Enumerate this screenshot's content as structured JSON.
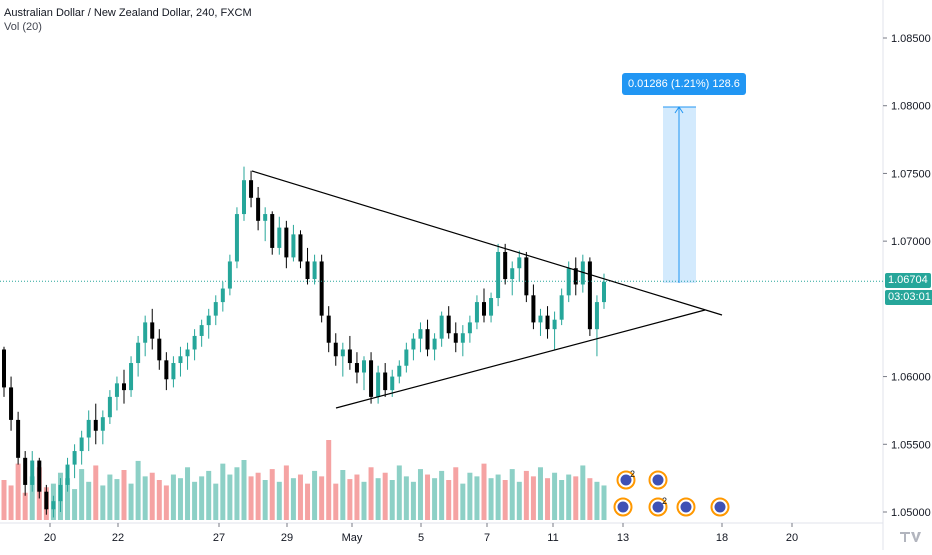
{
  "legend": {
    "title": "Australian Dollar / New Zealand Dollar, 240, FXCM",
    "volume": "Vol (20)"
  },
  "price_axis": {
    "ticks": [
      "1.08500",
      "1.08000",
      "1.07500",
      "1.07000",
      "1.06000",
      "1.05500",
      "1.05000"
    ],
    "current_price": "1.06704",
    "countdown": "03:03:01"
  },
  "time_axis": {
    "ticks": [
      "20",
      "22",
      "27",
      "29",
      "May",
      "5",
      "7",
      "11",
      "13",
      "18",
      "20"
    ]
  },
  "measure_callout": "0.01286 (1.21%) 128.6",
  "event_counts": [
    "2",
    "2"
  ],
  "colors": {
    "up": "#26a69a",
    "down": "#000000",
    "vol_up": "#8dd0c6",
    "vol_down": "#f5a3a3",
    "price_line": "#26a69a",
    "measure": "#2196f3"
  },
  "chart_data": {
    "type": "candlestick",
    "symbol": "Australian Dollar / New Zealand Dollar",
    "interval": "240",
    "source": "FXCM",
    "ylim": [
      1.0495,
      1.0885
    ],
    "current_price": 1.06704,
    "candles": [
      [
        1.062,
        1.0622,
        1.0585,
        1.0592
      ],
      [
        1.0592,
        1.06,
        1.056,
        1.0568
      ],
      [
        1.0568,
        1.0574,
        1.0535,
        1.054
      ],
      [
        1.054,
        1.0545,
        1.0512,
        1.052
      ],
      [
        1.052,
        1.0545,
        1.0515,
        1.0538
      ],
      [
        1.0538,
        1.054,
        1.051,
        1.0515
      ],
      [
        1.0515,
        1.052,
        1.0498,
        1.0502
      ],
      [
        1.0502,
        1.0512,
        1.0496,
        1.0508
      ],
      [
        1.0508,
        1.0525,
        1.05,
        1.052
      ],
      [
        1.052,
        1.054,
        1.0515,
        1.0535
      ],
      [
        1.0535,
        1.055,
        1.0525,
        1.0545
      ],
      [
        1.0545,
        1.056,
        1.0535,
        1.0555
      ],
      [
        1.0555,
        1.0575,
        1.0545,
        1.0568
      ],
      [
        1.0568,
        1.058,
        1.055,
        1.056
      ],
      [
        1.056,
        1.0575,
        1.055,
        1.057
      ],
      [
        1.057,
        1.059,
        1.0565,
        1.0585
      ],
      [
        1.0585,
        1.06,
        1.0575,
        1.0595
      ],
      [
        1.0595,
        1.0605,
        1.058,
        1.059
      ],
      [
        1.059,
        1.0615,
        1.0585,
        1.061
      ],
      [
        1.061,
        1.063,
        1.06,
        1.0625
      ],
      [
        1.0625,
        1.0645,
        1.0615,
        1.064
      ],
      [
        1.064,
        1.065,
        1.062,
        1.0628
      ],
      [
        1.0628,
        1.0635,
        1.0605,
        1.0612
      ],
      [
        1.0612,
        1.0618,
        1.059,
        1.0598
      ],
      [
        1.0598,
        1.0615,
        1.0592,
        1.061
      ],
      [
        1.061,
        1.0622,
        1.06,
        1.0615
      ],
      [
        1.0615,
        1.0625,
        1.0605,
        1.062
      ],
      [
        1.062,
        1.0635,
        1.0612,
        1.063
      ],
      [
        1.063,
        1.0642,
        1.0622,
        1.0638
      ],
      [
        1.0638,
        1.065,
        1.0628,
        1.0645
      ],
      [
        1.0645,
        1.066,
        1.0638,
        1.0655
      ],
      [
        1.0655,
        1.067,
        1.0648,
        1.0665
      ],
      [
        1.0665,
        1.069,
        1.066,
        1.0685
      ],
      [
        1.0685,
        1.0725,
        1.068,
        1.072
      ],
      [
        1.072,
        1.0755,
        1.0715,
        1.0745
      ],
      [
        1.0745,
        1.0752,
        1.0725,
        1.0732
      ],
      [
        1.0732,
        1.074,
        1.0708,
        1.0715
      ],
      [
        1.0715,
        1.0725,
        1.07,
        1.072
      ],
      [
        1.072,
        1.0722,
        1.069,
        1.0695
      ],
      [
        1.0695,
        1.0718,
        1.069,
        1.071
      ],
      [
        1.071,
        1.0715,
        1.068,
        1.0688
      ],
      [
        1.0688,
        1.0712,
        1.0685,
        1.0705
      ],
      [
        1.0705,
        1.0708,
        1.068,
        1.0685
      ],
      [
        1.0685,
        1.0695,
        1.0668,
        1.0672
      ],
      [
        1.0672,
        1.069,
        1.0668,
        1.0685
      ],
      [
        1.0685,
        1.069,
        1.064,
        1.0645
      ],
      [
        1.0645,
        1.0652,
        1.0618,
        1.0625
      ],
      [
        1.0625,
        1.0632,
        1.0608,
        1.0615
      ],
      [
        1.0615,
        1.0625,
        1.06,
        1.062
      ],
      [
        1.062,
        1.063,
        1.0605,
        1.061
      ],
      [
        1.061,
        1.0618,
        1.0595,
        1.0603
      ],
      [
        1.0603,
        1.0615,
        1.059,
        1.0612
      ],
      [
        1.0612,
        1.0618,
        1.058,
        1.0585
      ],
      [
        1.0585,
        1.0608,
        1.058,
        1.0603
      ],
      [
        1.0603,
        1.061,
        1.0585,
        1.059
      ],
      [
        1.059,
        1.0605,
        1.0585,
        1.06
      ],
      [
        1.06,
        1.0612,
        1.0595,
        1.0608
      ],
      [
        1.0608,
        1.0625,
        1.0603,
        1.062
      ],
      [
        1.062,
        1.0632,
        1.0612,
        1.0628
      ],
      [
        1.0628,
        1.064,
        1.0618,
        1.0635
      ],
      [
        1.0635,
        1.0642,
        1.0615,
        1.062
      ],
      [
        1.062,
        1.0632,
        1.0612,
        1.0628
      ],
      [
        1.0628,
        1.0648,
        1.0622,
        1.0645
      ],
      [
        1.0645,
        1.0652,
        1.0628,
        1.0632
      ],
      [
        1.0632,
        1.064,
        1.0618,
        1.0625
      ],
      [
        1.0625,
        1.0638,
        1.0615,
        1.0632
      ],
      [
        1.0632,
        1.0645,
        1.0625,
        1.064
      ],
      [
        1.064,
        1.066,
        1.0635,
        1.0655
      ],
      [
        1.0655,
        1.0665,
        1.064,
        1.0645
      ],
      [
        1.0645,
        1.0662,
        1.064,
        1.0658
      ],
      [
        1.0658,
        1.0698,
        1.0652,
        1.0692
      ],
      [
        1.0692,
        1.0698,
        1.0668,
        1.0672
      ],
      [
        1.0672,
        1.0685,
        1.066,
        1.068
      ],
      [
        1.068,
        1.0693,
        1.067,
        1.0688
      ],
      [
        1.0688,
        1.0692,
        1.0655,
        1.066
      ],
      [
        1.066,
        1.0668,
        1.0635,
        1.064
      ],
      [
        1.064,
        1.065,
        1.063,
        1.0645
      ],
      [
        1.0645,
        1.0652,
        1.0628,
        1.0635
      ],
      [
        1.0635,
        1.0648,
        1.062,
        1.0642
      ],
      [
        1.0642,
        1.0665,
        1.0638,
        1.066
      ],
      [
        1.066,
        1.0685,
        1.0655,
        1.068
      ],
      [
        1.068,
        1.0688,
        1.066,
        1.0668
      ],
      [
        1.0668,
        1.069,
        1.0662,
        1.0685
      ],
      [
        1.0685,
        1.0688,
        1.063,
        1.0635
      ],
      [
        1.0635,
        1.066,
        1.0615,
        1.0655
      ],
      [
        1.0655,
        1.0676,
        1.065,
        1.067
      ]
    ],
    "volume": [
      44,
      38,
      62,
      30,
      48,
      58,
      36,
      40,
      52,
      46,
      34,
      56,
      42,
      60,
      38,
      50,
      45,
      55,
      40,
      65,
      48,
      52,
      44,
      38,
      50,
      46,
      58,
      42,
      48,
      54,
      40,
      62,
      50,
      58,
      66,
      48,
      52,
      44,
      56,
      42,
      60,
      46,
      50,
      40,
      54,
      48,
      88,
      40,
      55,
      45,
      50,
      42,
      58,
      46,
      52,
      44,
      60,
      48,
      42,
      56,
      50,
      46,
      54,
      44,
      58,
      40,
      52,
      48,
      62,
      46,
      50,
      44,
      56,
      42,
      54,
      48,
      58,
      46,
      52,
      44,
      50,
      48,
      60,
      46,
      42,
      38
    ],
    "annotations": {
      "descending_trendline": {
        "from": [
          1.0752
        ],
        "to": [
          1.0643
        ]
      },
      "ascending_trendline": {
        "from": [
          1.0578
        ],
        "to": [
          1.0643
        ]
      },
      "price_range": {
        "from": 1.067,
        "to": 1.0799,
        "label": "0.01286 (1.21%) 128.6"
      }
    }
  }
}
